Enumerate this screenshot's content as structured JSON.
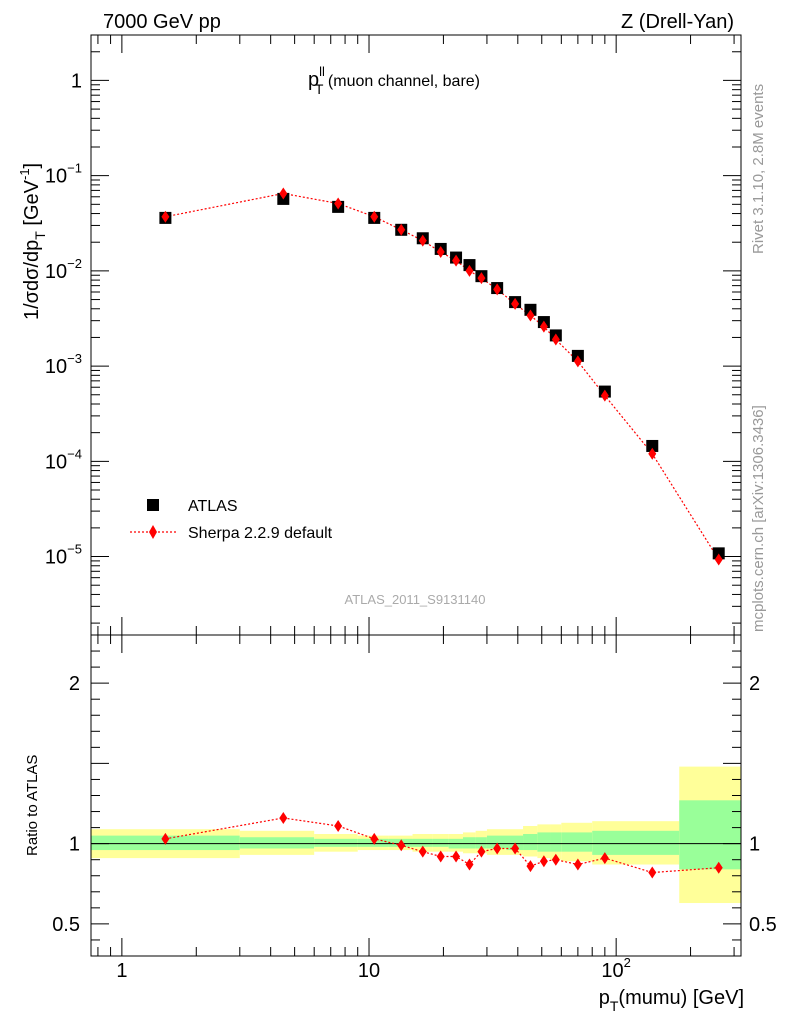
{
  "header": {
    "left": "7000 GeV pp",
    "right": "Z (Drell-Yan)"
  },
  "side_labels": {
    "rivet": "Rivet 3.1.10,  2.8M events",
    "site": "mcplots.cern.ch [arXiv:1306.3436]"
  },
  "chart_data": {
    "type": "scatter",
    "title": {
      "main": "p",
      "sup": "ll",
      "sub": "T",
      "rest": " (muon channel, bare)"
    },
    "analysis_label": "ATLAS_2011_S9131140",
    "x_log": true,
    "xlim": [
      0.75,
      320
    ],
    "x_ticks": [
      {
        "v": 1,
        "t": "1"
      },
      {
        "v": 10,
        "t": "10"
      },
      {
        "v": 100,
        "t": "10",
        "sup": "2"
      }
    ],
    "xlabel": {
      "main": "p",
      "sub": "T",
      "rest": "(mumu) [GeV]"
    },
    "top": {
      "y_log": true,
      "ylim": [
        1.5e-06,
        3
      ],
      "ylabel": {
        "a": "1/σdσ/dp",
        "sub": "T",
        "b": " [GeV",
        "sup": "-1",
        "c": "]"
      },
      "y_ticks": [
        {
          "v": 1,
          "t": "1"
        },
        {
          "v": 0.1,
          "t": "10",
          "sup": "−1"
        },
        {
          "v": 0.01,
          "t": "10",
          "sup": "−2"
        },
        {
          "v": 0.001,
          "t": "10",
          "sup": "−3"
        },
        {
          "v": 0.0001,
          "t": "10",
          "sup": "−4"
        },
        {
          "v": 1e-05,
          "t": "10",
          "sup": "−5"
        }
      ]
    },
    "x": [
      1.5,
      4.5,
      7.5,
      10.5,
      13.5,
      16.5,
      19.5,
      22.5,
      25.5,
      28.5,
      33,
      39,
      45,
      51,
      57,
      70,
      90,
      140,
      260
    ],
    "series": [
      {
        "name": "ATLAS",
        "marker": "square",
        "color": "#000000",
        "values": [
          0.036,
          0.057,
          0.047,
          0.036,
          0.027,
          0.022,
          0.017,
          0.0138,
          0.0115,
          0.0088,
          0.0066,
          0.0047,
          0.0039,
          0.0029,
          0.0021,
          0.00128,
          0.00054,
          0.000145,
          1.08e-05
        ]
      },
      {
        "name": "Sherpa 2.2.9 default",
        "marker": "diamond",
        "color": "#ff0000",
        "line": "dotted",
        "values": [
          0.037,
          0.065,
          0.051,
          0.037,
          0.027,
          0.0208,
          0.0158,
          0.0128,
          0.01,
          0.0084,
          0.0064,
          0.0045,
          0.0034,
          0.0026,
          0.0019,
          0.00112,
          0.00049,
          0.00012,
          9.3e-06
        ]
      }
    ],
    "ratio": {
      "ylabel": "Ratio to ATLAS",
      "ylim": [
        0.3,
        2.3
      ],
      "y_ticks": [
        {
          "v": 0.5,
          "t": "0.5"
        },
        {
          "v": 1,
          "t": "1"
        },
        {
          "v": 2,
          "t": "2"
        }
      ],
      "values": [
        1.03,
        1.16,
        1.11,
        1.03,
        0.99,
        0.95,
        0.92,
        0.92,
        0.87,
        0.95,
        0.97,
        0.97,
        0.86,
        0.89,
        0.9,
        0.87,
        0.91,
        0.82,
        0.85
      ],
      "bands": [
        {
          "x0": 0.75,
          "x1": 3.0,
          "y0": 0.91,
          "y1": 1.09,
          "g0": 0.96,
          "g1": 1.05
        },
        {
          "x0": 3.0,
          "x1": 6.0,
          "y0": 0.93,
          "y1": 1.08,
          "g0": 0.97,
          "g1": 1.04
        },
        {
          "x0": 6.0,
          "x1": 9.0,
          "y0": 0.95,
          "y1": 1.06,
          "g0": 0.98,
          "g1": 1.03
        },
        {
          "x0": 9.0,
          "x1": 12.0,
          "y0": 0.96,
          "y1": 1.05,
          "g0": 0.98,
          "g1": 1.03
        },
        {
          "x0": 12.0,
          "x1": 15.0,
          "y0": 0.96,
          "y1": 1.05,
          "g0": 0.98,
          "g1": 1.03
        },
        {
          "x0": 15.0,
          "x1": 18.0,
          "y0": 0.95,
          "y1": 1.06,
          "g0": 0.98,
          "g1": 1.03
        },
        {
          "x0": 18.0,
          "x1": 21.0,
          "y0": 0.95,
          "y1": 1.06,
          "g0": 0.98,
          "g1": 1.03
        },
        {
          "x0": 21.0,
          "x1": 24.0,
          "y0": 0.95,
          "y1": 1.06,
          "g0": 0.97,
          "g1": 1.03
        },
        {
          "x0": 24.0,
          "x1": 27.0,
          "y0": 0.94,
          "y1": 1.07,
          "g0": 0.97,
          "g1": 1.04
        },
        {
          "x0": 27.0,
          "x1": 30.0,
          "y0": 0.94,
          "y1": 1.08,
          "g0": 0.97,
          "g1": 1.04
        },
        {
          "x0": 30.0,
          "x1": 36.0,
          "y0": 0.93,
          "y1": 1.09,
          "g0": 0.97,
          "g1": 1.05
        },
        {
          "x0": 36.0,
          "x1": 42.0,
          "y0": 0.93,
          "y1": 1.09,
          "g0": 0.96,
          "g1": 1.05
        },
        {
          "x0": 42.0,
          "x1": 48.0,
          "y0": 0.92,
          "y1": 1.11,
          "g0": 0.96,
          "g1": 1.06
        },
        {
          "x0": 48.0,
          "x1": 54.0,
          "y0": 0.91,
          "y1": 1.12,
          "g0": 0.95,
          "g1": 1.07
        },
        {
          "x0": 54.0,
          "x1": 60.0,
          "y0": 0.9,
          "y1": 1.12,
          "g0": 0.95,
          "g1": 1.07
        },
        {
          "x0": 60.0,
          "x1": 80.0,
          "y0": 0.89,
          "y1": 1.13,
          "g0": 0.95,
          "g1": 1.07
        },
        {
          "x0": 80.0,
          "x1": 180.0,
          "y0": 0.87,
          "y1": 1.14,
          "g0": 0.93,
          "g1": 1.08
        },
        {
          "x0": 180.0,
          "x1": 320.0,
          "y0": 0.63,
          "y1": 1.48,
          "g0": 0.84,
          "g1": 1.27
        }
      ]
    },
    "colors": {
      "band_outer": "#ffff99",
      "band_inner": "#99ff99",
      "data": "#000000",
      "mc": "#ff0000"
    }
  }
}
